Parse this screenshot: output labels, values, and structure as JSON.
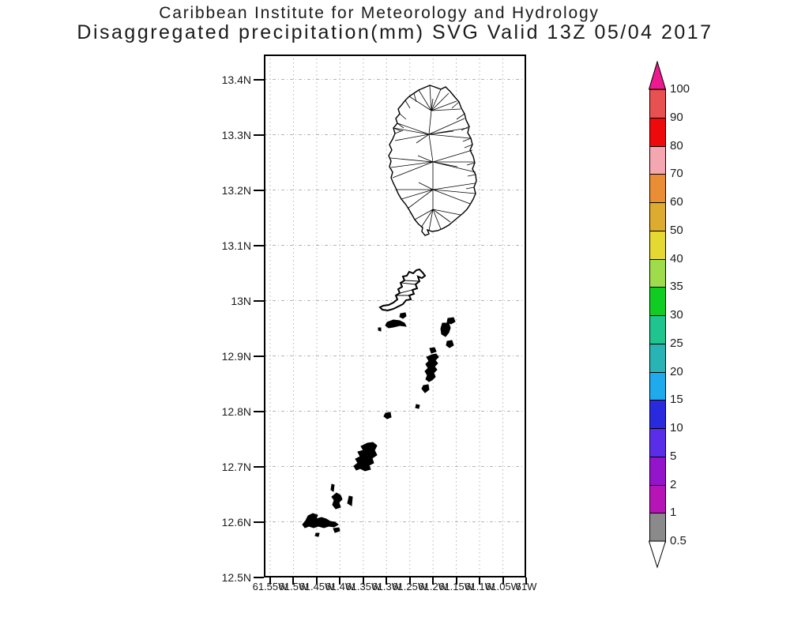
{
  "title": {
    "line1": "Caribbean Institute for Meteorology and Hydrology",
    "line2": "Disaggregated precipitation(mm) SVG Valid 13Z 05/04 2017"
  },
  "axes": {
    "lat_labels": [
      "13.4N",
      "13.3N",
      "13.2N",
      "13.1N",
      "13N",
      "12.9N",
      "12.8N",
      "12.7N",
      "12.6N",
      "12.5N"
    ],
    "lon_labels": [
      "61.55W",
      "61.5W",
      "61.45W",
      "61.4W",
      "61.35W",
      "61.3W",
      "61.25W",
      "61.2W",
      "61.15W",
      "61.1W",
      "61.05W",
      "61W"
    ]
  },
  "colorbar": {
    "tick_labels": [
      "100",
      "90",
      "80",
      "70",
      "60",
      "50",
      "40",
      "35",
      "30",
      "25",
      "20",
      "15",
      "10",
      "5",
      "2",
      "1",
      "0.5"
    ],
    "band_colors_top_to_bottom": [
      "#e85151",
      "#ee0a0a",
      "#f4a7b0",
      "#e98e35",
      "#dcab2f",
      "#e6d832",
      "#9fdc4b",
      "#11cc22",
      "#1fc48e",
      "#28b4b4",
      "#1faaee",
      "#2929dd",
      "#5a2ee8",
      "#9414cc",
      "#b714b7",
      "#8a8a8a"
    ],
    "over_arrow_color": "#ec1a8e",
    "under_arrow_color": "#ffffff",
    "units": "mm"
  },
  "style": {
    "grid_color": "#b4b4b4",
    "coast_color": "#000000",
    "land_fill": "#ffffff"
  },
  "chart_data": {
    "type": "map",
    "title": "Disaggregated precipitation(mm) SVG Valid 13Z 05/04 2017",
    "subtitle": "Caribbean Institute for Meteorology and Hydrology",
    "units": "mm",
    "valid_time": "13Z 05/04 2017",
    "lat_range": [
      "12.5N",
      "13.4N"
    ],
    "lon_range": [
      "61.55W",
      "61W"
    ],
    "scale_levels": [
      0.5,
      1,
      2,
      5,
      10,
      15,
      20,
      25,
      30,
      35,
      40,
      50,
      60,
      70,
      80,
      90,
      100
    ],
    "grid": "on",
    "legend_position": "right colorbar"
  }
}
